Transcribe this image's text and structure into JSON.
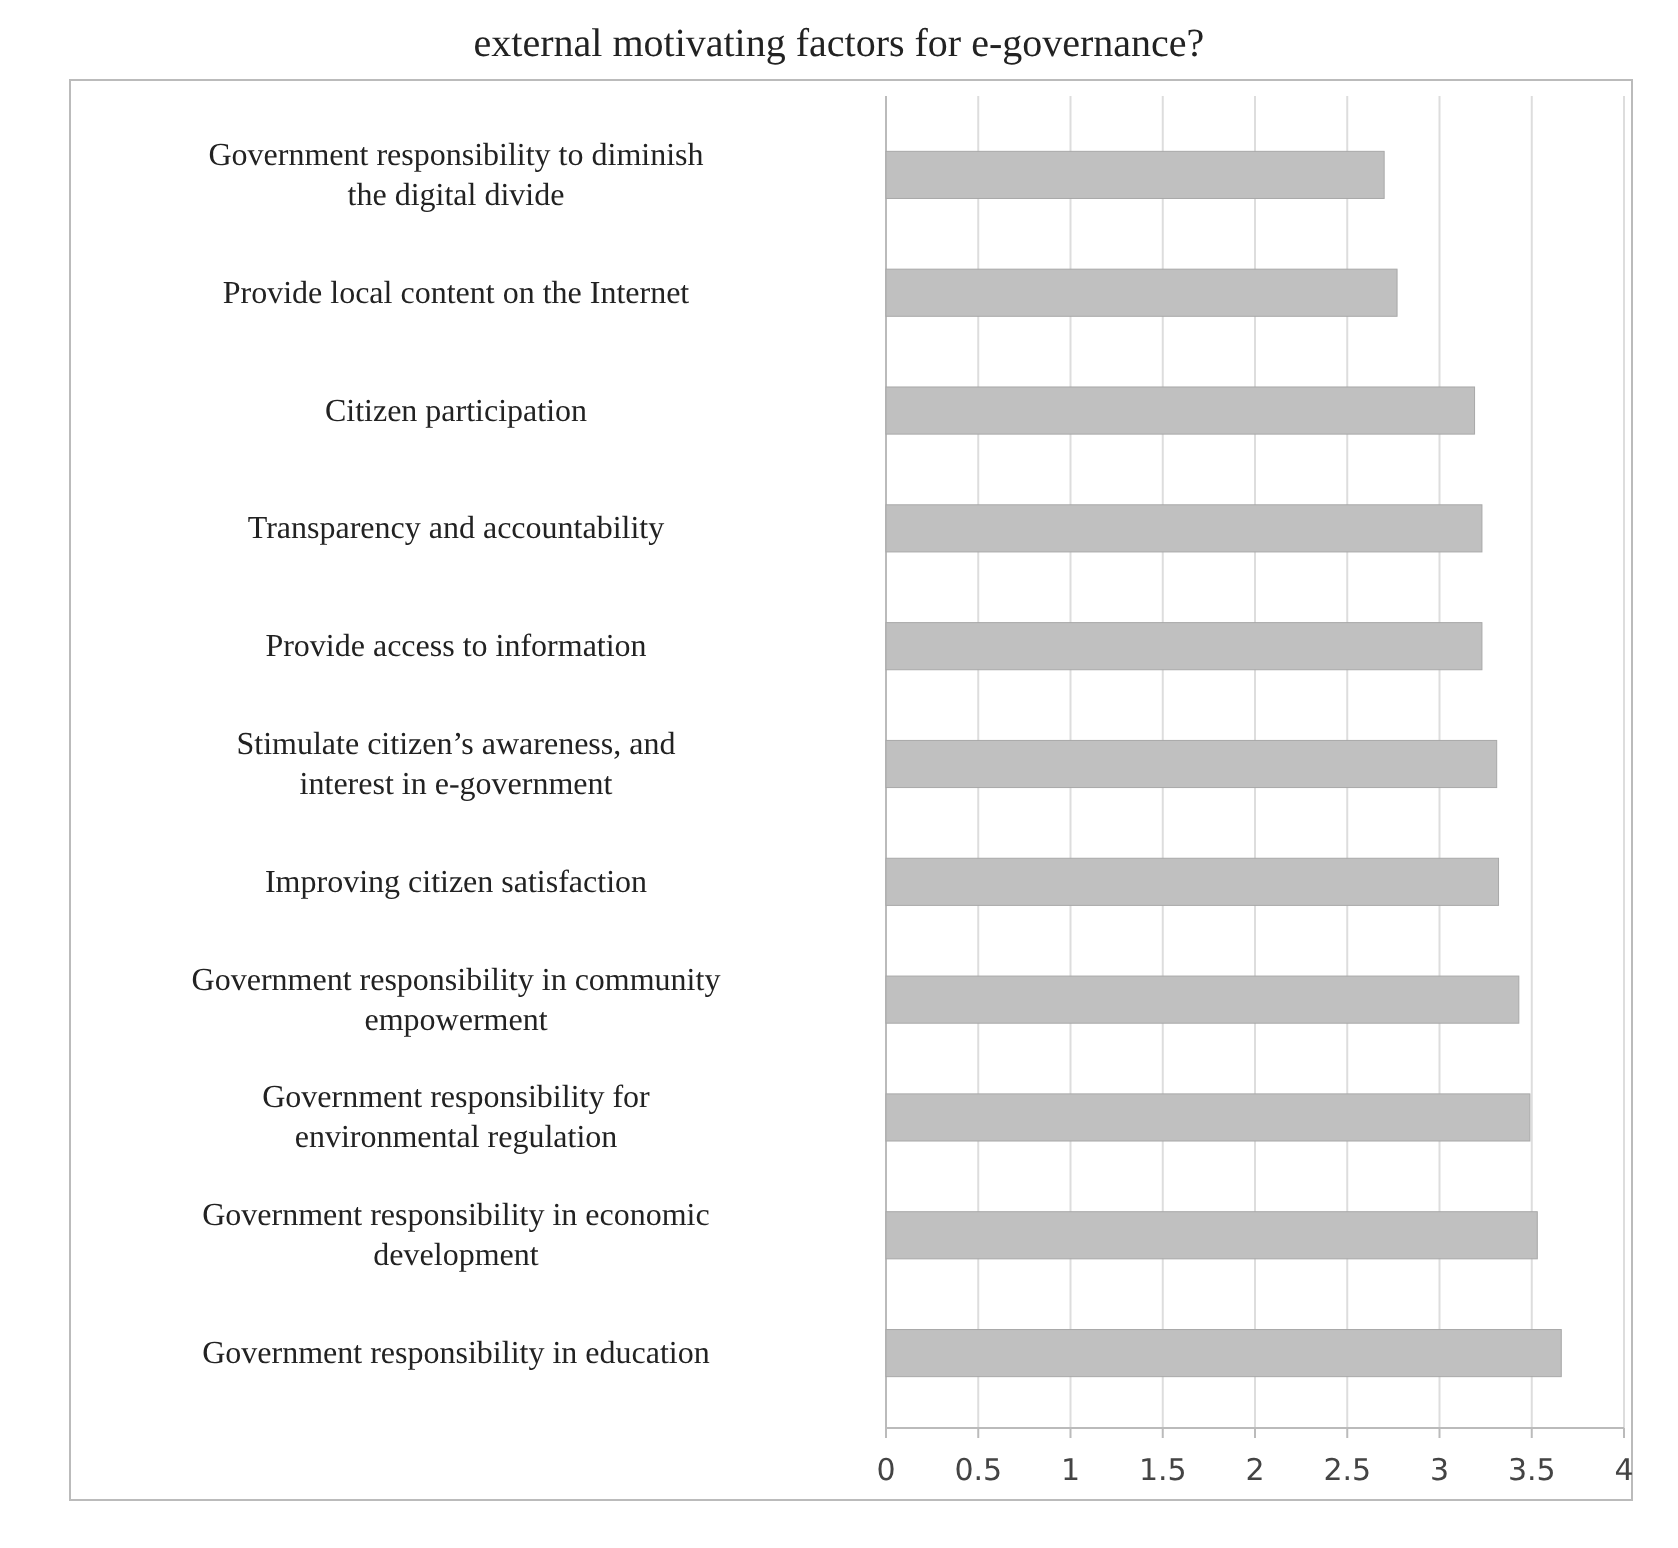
{
  "chart_data": {
    "type": "bar",
    "orientation": "horizontal",
    "title": "external motivating factors for e-governance?",
    "categories": [
      "Government responsibility to diminish the digital divide",
      "Provide local content on the Internet",
      "Citizen participation",
      "Transparency and accountability",
      "Provide access to information",
      "Stimulate citizen’s awareness, and interest in e-government",
      "Improving citizen satisfaction",
      "Government responsibility in community empowerment",
      "Government responsibility for environmental regulation",
      "Government responsibility in economic development",
      "Government responsibility in education"
    ],
    "values": [
      2.7,
      2.77,
      3.19,
      3.23,
      3.23,
      3.31,
      3.32,
      3.43,
      3.49,
      3.53,
      3.66
    ],
    "color": "#c0c0c0",
    "xlim": [
      0,
      4
    ],
    "xticks": [
      0,
      0.5,
      1,
      1.5,
      2,
      2.5,
      3,
      3.5,
      4
    ],
    "grid": "x"
  }
}
